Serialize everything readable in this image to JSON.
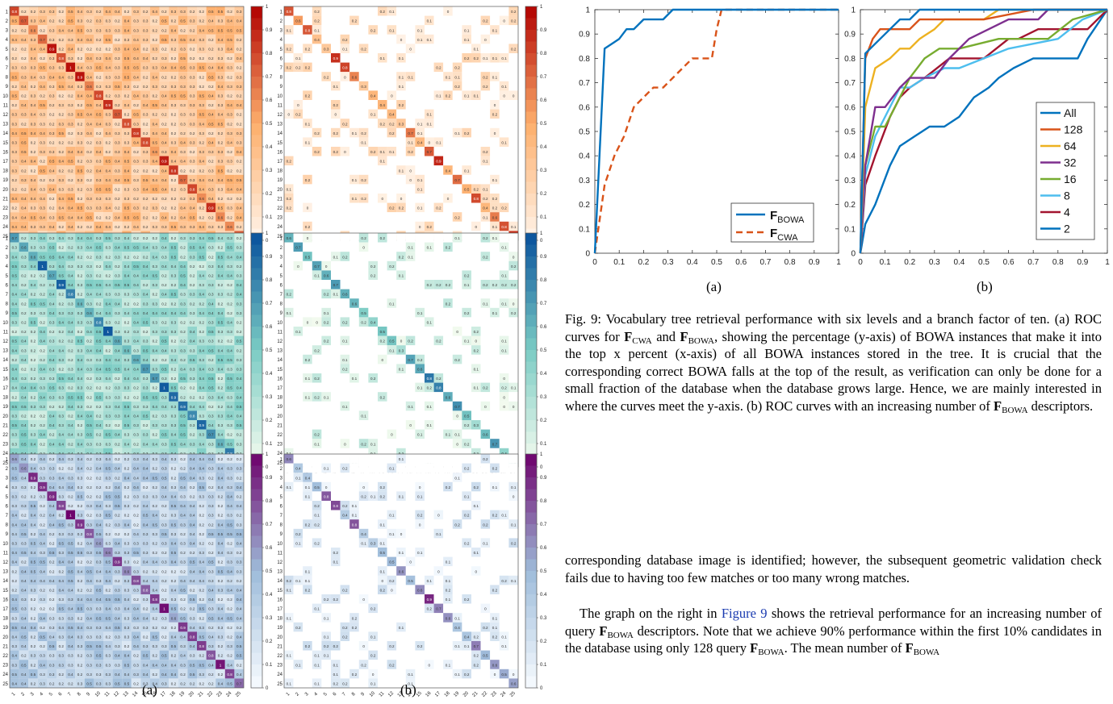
{
  "left_figure": {
    "matrix_size": 25,
    "tick_labels": [
      "1",
      "2",
      "3",
      "4",
      "5",
      "6",
      "7",
      "8",
      "9",
      "10",
      "11",
      "12",
      "13",
      "14",
      "15",
      "16",
      "17",
      "18",
      "19",
      "20",
      "21",
      "22",
      "23",
      "24",
      "25"
    ],
    "colorbar_ticks": [
      "0",
      "0.1",
      "0.2",
      "0.3",
      "0.4",
      "0.5",
      "0.6",
      "0.7",
      "0.8",
      "0.9",
      "1"
    ],
    "row_colors": [
      {
        "name": "orange",
        "low": "#fff5eb",
        "mid": "#fdae6b",
        "high": "#b10000"
      },
      {
        "name": "green-blue",
        "low": "#f7fcf0",
        "mid": "#7bccc4",
        "high": "#08519c"
      },
      {
        "name": "purple",
        "low": "#f7fbff",
        "mid": "#9ebcda",
        "high": "#6e016b"
      }
    ],
    "label_a": "(a)",
    "label_b": "(b)"
  },
  "chart_data": [
    {
      "type": "line",
      "label": "(a)",
      "xlim": [
        0,
        1
      ],
      "ylim": [
        0,
        1
      ],
      "xticks": [
        "0",
        "0.1",
        "0.2",
        "0.3",
        "0.4",
        "0.5",
        "0.6",
        "0.7",
        "0.8",
        "0.9",
        "1"
      ],
      "yticks": [
        "0",
        "0.1",
        "0.2",
        "0.3",
        "0.4",
        "0.5",
        "0.6",
        "0.7",
        "0.8",
        "0.9",
        "1"
      ],
      "legend_position": "bottom-right",
      "series": [
        {
          "name": "F_BOWA",
          "legend_main": "F",
          "legend_sub": "BOWA",
          "color": "#0072bd",
          "dash": false,
          "x": [
            0,
            0.04,
            0.1,
            0.13,
            0.16,
            0.2,
            0.24,
            0.28,
            0.32,
            1
          ],
          "y": [
            0,
            0.84,
            0.88,
            0.92,
            0.92,
            0.96,
            0.96,
            0.96,
            1,
            1
          ]
        },
        {
          "name": "F_CWA",
          "legend_main": "F",
          "legend_sub": "CWA",
          "color": "#d95319",
          "dash": true,
          "x": [
            0,
            0.04,
            0.08,
            0.12,
            0.16,
            0.2,
            0.24,
            0.28,
            0.32,
            0.36,
            0.4,
            0.44,
            0.48,
            0.5,
            0.52,
            1
          ],
          "y": [
            0,
            0.28,
            0.4,
            0.48,
            0.6,
            0.64,
            0.68,
            0.68,
            0.72,
            0.76,
            0.8,
            0.8,
            0.8,
            0.92,
            1,
            1
          ]
        }
      ]
    },
    {
      "type": "line",
      "label": "(b)",
      "xlim": [
        0,
        1
      ],
      "ylim": [
        0,
        1
      ],
      "xticks": [
        "0",
        "0.1",
        "0.2",
        "0.3",
        "0.4",
        "0.5",
        "0.6",
        "0.7",
        "0.8",
        "0.9",
        "1"
      ],
      "yticks": [
        "0",
        "0.1",
        "0.2",
        "0.3",
        "0.4",
        "0.5",
        "0.6",
        "0.7",
        "0.8",
        "0.9",
        "1"
      ],
      "legend_position": "right",
      "series": [
        {
          "name": "All",
          "color": "#0072bd",
          "x": [
            0,
            0.02,
            0.04,
            0.08,
            0.12,
            0.16,
            0.2,
            0.24,
            0.3,
            1
          ],
          "y": [
            0,
            0.82,
            0.84,
            0.88,
            0.92,
            0.96,
            0.96,
            1,
            1,
            1
          ]
        },
        {
          "name": "128",
          "color": "#d95319",
          "x": [
            0,
            0.02,
            0.05,
            0.08,
            0.12,
            0.2,
            0.24,
            0.3,
            0.5,
            0.7,
            0.9,
            1
          ],
          "y": [
            0,
            0.8,
            0.88,
            0.92,
            0.92,
            0.92,
            0.96,
            0.96,
            0.96,
            1,
            1,
            1
          ]
        },
        {
          "name": "64",
          "color": "#edb120",
          "x": [
            0,
            0.02,
            0.06,
            0.12,
            0.16,
            0.2,
            0.24,
            0.3,
            0.34,
            0.5,
            0.56,
            1
          ],
          "y": [
            0,
            0.6,
            0.76,
            0.8,
            0.84,
            0.84,
            0.88,
            0.92,
            0.96,
            0.96,
            1,
            1
          ]
        },
        {
          "name": "32",
          "color": "#7e2f8e",
          "x": [
            0,
            0.02,
            0.06,
            0.1,
            0.16,
            0.2,
            0.24,
            0.3,
            0.36,
            0.44,
            0.6,
            0.72,
            0.76,
            1
          ],
          "y": [
            0,
            0.36,
            0.6,
            0.6,
            0.68,
            0.72,
            0.72,
            0.72,
            0.8,
            0.88,
            0.96,
            0.96,
            1,
            1
          ]
        },
        {
          "name": "16",
          "color": "#77ac30",
          "x": [
            0,
            0.02,
            0.06,
            0.1,
            0.16,
            0.2,
            0.26,
            0.32,
            0.4,
            0.56,
            0.76,
            0.86,
            1
          ],
          "y": [
            0,
            0.36,
            0.52,
            0.52,
            0.64,
            0.72,
            0.8,
            0.84,
            0.84,
            0.88,
            0.88,
            0.96,
            1
          ]
        },
        {
          "name": "8",
          "color": "#4dbeee",
          "x": [
            0,
            0.02,
            0.06,
            0.12,
            0.16,
            0.2,
            0.26,
            0.34,
            0.4,
            0.5,
            0.6,
            0.8,
            0.9,
            1
          ],
          "y": [
            0,
            0.32,
            0.48,
            0.6,
            0.68,
            0.68,
            0.72,
            0.76,
            0.76,
            0.8,
            0.84,
            0.88,
            0.96,
            1
          ]
        },
        {
          "name": "4",
          "color": "#a2142f",
          "x": [
            0,
            0.02,
            0.06,
            0.12,
            0.16,
            0.2,
            0.26,
            0.36,
            0.5,
            0.6,
            0.64,
            0.72,
            0.82,
            0.92,
            1
          ],
          "y": [
            0,
            0.28,
            0.4,
            0.56,
            0.64,
            0.68,
            0.72,
            0.8,
            0.8,
            0.88,
            0.88,
            0.92,
            0.92,
            0.92,
            1
          ]
        },
        {
          "name": "2",
          "color": "#0072bd",
          "x": [
            0,
            0.02,
            0.06,
            0.12,
            0.16,
            0.22,
            0.28,
            0.34,
            0.4,
            0.46,
            0.52,
            0.56,
            0.62,
            0.7,
            0.8,
            0.88,
            0.92,
            1
          ],
          "y": [
            0,
            0.12,
            0.2,
            0.36,
            0.44,
            0.48,
            0.52,
            0.52,
            0.56,
            0.64,
            0.68,
            0.72,
            0.76,
            0.8,
            0.8,
            0.8,
            0.88,
            1
          ]
        }
      ]
    }
  ],
  "caption": {
    "prefix": "Fig. 9: ",
    "t1": "Vocabulary tree retrieval performance with six levels and a branch factor of ten. (a) ROC curves for ",
    "t2": " and ",
    "t3": ", showing the percentage (y-axis) of BOWA instances that make it into the top x percent (x-axis) of all BOWA instances stored in the tree. It is crucial that the corresponding correct BOWA falls at the top of the result, as verification can only be done for a small fraction of the database when the database grows large. Hence, we are mainly interested in where the curves meet the y-axis. (b) ROC curves with an increasing number of ",
    "t4": " descriptors."
  },
  "symbols": {
    "F": "F",
    "cwa": "CWA",
    "bowa": "BOWA"
  },
  "body": {
    "p1": "corresponding database image is identified; however, the subsequent geometric validation check fails due to having too few matches or too many wrong matches.",
    "p2a": "The graph on the right in ",
    "p2link": "Figure 9",
    "p2b": " shows the retrieval performance for an increasing number of query ",
    "p2c": " descriptors. Note that we achieve 90% performance within the first 10% candidates in the database using only 128 query ",
    "p2d": ". The mean number of "
  }
}
